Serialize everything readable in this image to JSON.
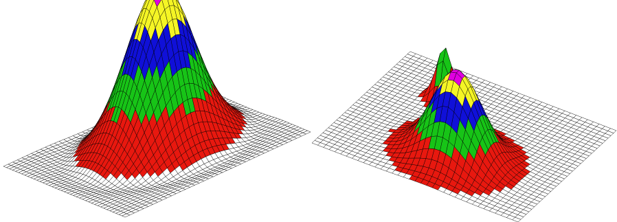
{
  "figure": {
    "panels": [
      {
        "id": "single-peak-surface",
        "peaks": [
          {
            "role": "main",
            "height": 1.0,
            "width": 0.28
          }
        ]
      },
      {
        "id": "two-peak-surface",
        "peaks": [
          {
            "role": "small",
            "height": 0.34,
            "width": 0.07
          },
          {
            "role": "large",
            "height": 0.55,
            "width": 0.14
          }
        ]
      }
    ],
    "colors": {
      "background": "#ffffff",
      "grid_line": "#000000",
      "grid_fill": "#ffffff",
      "band_base": "#e8180f",
      "band_2": "#17c417",
      "band_3": "#1010d8",
      "band_4": "#f5f525",
      "band_top": "#e000e0"
    },
    "color_bands": [
      "red",
      "green",
      "blue",
      "yellow",
      "magenta"
    ]
  }
}
